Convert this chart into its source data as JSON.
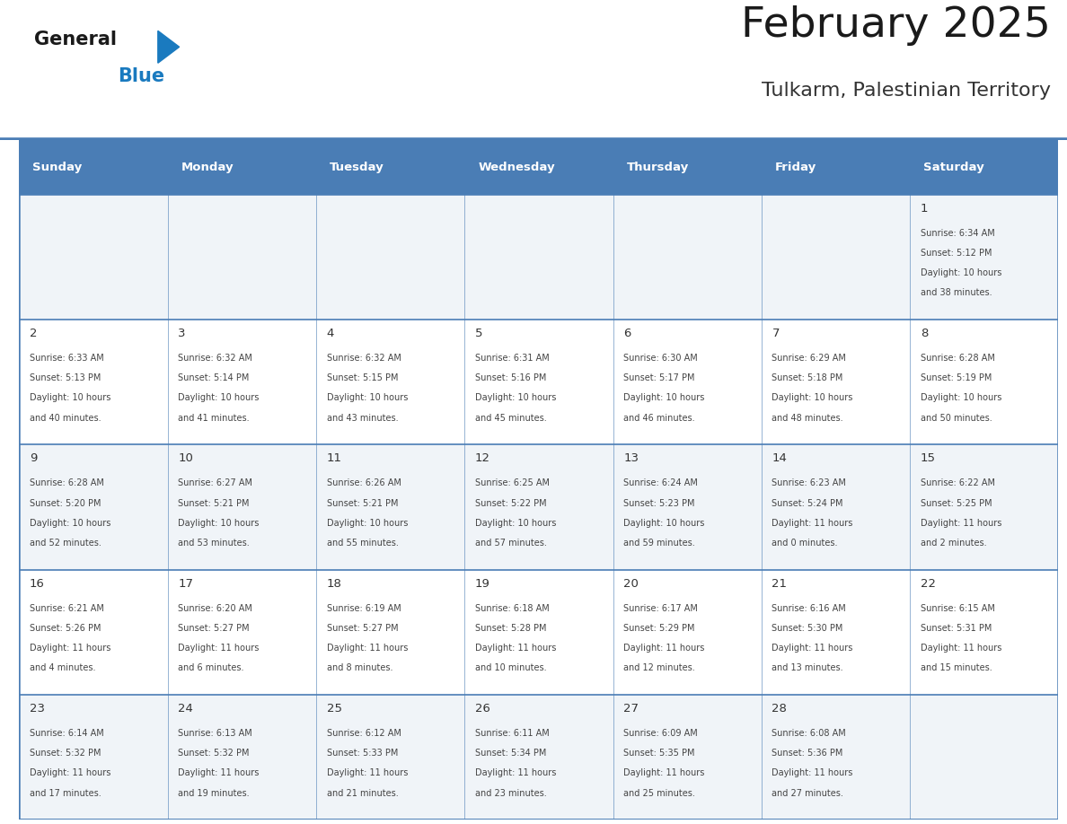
{
  "title": "February 2025",
  "subtitle": "Tulkarm, Palestinian Territory",
  "header_bg": "#4a7db5",
  "header_text": "#ffffff",
  "day_names": [
    "Sunday",
    "Monday",
    "Tuesday",
    "Wednesday",
    "Thursday",
    "Friday",
    "Saturday"
  ],
  "row_bg_odd": "#f0f4f8",
  "row_bg_even": "#ffffff",
  "cell_border_color": "#4a7db5",
  "row_border_color": "#4a7db5",
  "day_num_color": "#333333",
  "info_color": "#444444",
  "title_color": "#1a1a1a",
  "subtitle_color": "#333333",
  "logo_general_color": "#1a1a1a",
  "logo_blue_color": "#1a7abf",
  "calendar": [
    [
      null,
      null,
      null,
      null,
      null,
      null,
      {
        "day": "1",
        "sunrise": "6:34 AM",
        "sunset": "5:12 PM",
        "daylight": "10 hours and 38 minutes."
      }
    ],
    [
      {
        "day": "2",
        "sunrise": "6:33 AM",
        "sunset": "5:13 PM",
        "daylight": "10 hours and 40 minutes."
      },
      {
        "day": "3",
        "sunrise": "6:32 AM",
        "sunset": "5:14 PM",
        "daylight": "10 hours and 41 minutes."
      },
      {
        "day": "4",
        "sunrise": "6:32 AM",
        "sunset": "5:15 PM",
        "daylight": "10 hours and 43 minutes."
      },
      {
        "day": "5",
        "sunrise": "6:31 AM",
        "sunset": "5:16 PM",
        "daylight": "10 hours and 45 minutes."
      },
      {
        "day": "6",
        "sunrise": "6:30 AM",
        "sunset": "5:17 PM",
        "daylight": "10 hours and 46 minutes."
      },
      {
        "day": "7",
        "sunrise": "6:29 AM",
        "sunset": "5:18 PM",
        "daylight": "10 hours and 48 minutes."
      },
      {
        "day": "8",
        "sunrise": "6:28 AM",
        "sunset": "5:19 PM",
        "daylight": "10 hours and 50 minutes."
      }
    ],
    [
      {
        "day": "9",
        "sunrise": "6:28 AM",
        "sunset": "5:20 PM",
        "daylight": "10 hours and 52 minutes."
      },
      {
        "day": "10",
        "sunrise": "6:27 AM",
        "sunset": "5:21 PM",
        "daylight": "10 hours and 53 minutes."
      },
      {
        "day": "11",
        "sunrise": "6:26 AM",
        "sunset": "5:21 PM",
        "daylight": "10 hours and 55 minutes."
      },
      {
        "day": "12",
        "sunrise": "6:25 AM",
        "sunset": "5:22 PM",
        "daylight": "10 hours and 57 minutes."
      },
      {
        "day": "13",
        "sunrise": "6:24 AM",
        "sunset": "5:23 PM",
        "daylight": "10 hours and 59 minutes."
      },
      {
        "day": "14",
        "sunrise": "6:23 AM",
        "sunset": "5:24 PM",
        "daylight": "11 hours and 0 minutes."
      },
      {
        "day": "15",
        "sunrise": "6:22 AM",
        "sunset": "5:25 PM",
        "daylight": "11 hours and 2 minutes."
      }
    ],
    [
      {
        "day": "16",
        "sunrise": "6:21 AM",
        "sunset": "5:26 PM",
        "daylight": "11 hours and 4 minutes."
      },
      {
        "day": "17",
        "sunrise": "6:20 AM",
        "sunset": "5:27 PM",
        "daylight": "11 hours and 6 minutes."
      },
      {
        "day": "18",
        "sunrise": "6:19 AM",
        "sunset": "5:27 PM",
        "daylight": "11 hours and 8 minutes."
      },
      {
        "day": "19",
        "sunrise": "6:18 AM",
        "sunset": "5:28 PM",
        "daylight": "11 hours and 10 minutes."
      },
      {
        "day": "20",
        "sunrise": "6:17 AM",
        "sunset": "5:29 PM",
        "daylight": "11 hours and 12 minutes."
      },
      {
        "day": "21",
        "sunrise": "6:16 AM",
        "sunset": "5:30 PM",
        "daylight": "11 hours and 13 minutes."
      },
      {
        "day": "22",
        "sunrise": "6:15 AM",
        "sunset": "5:31 PM",
        "daylight": "11 hours and 15 minutes."
      }
    ],
    [
      {
        "day": "23",
        "sunrise": "6:14 AM",
        "sunset": "5:32 PM",
        "daylight": "11 hours and 17 minutes."
      },
      {
        "day": "24",
        "sunrise": "6:13 AM",
        "sunset": "5:32 PM",
        "daylight": "11 hours and 19 minutes."
      },
      {
        "day": "25",
        "sunrise": "6:12 AM",
        "sunset": "5:33 PM",
        "daylight": "11 hours and 21 minutes."
      },
      {
        "day": "26",
        "sunrise": "6:11 AM",
        "sunset": "5:34 PM",
        "daylight": "11 hours and 23 minutes."
      },
      {
        "day": "27",
        "sunrise": "6:09 AM",
        "sunset": "5:35 PM",
        "daylight": "11 hours and 25 minutes."
      },
      {
        "day": "28",
        "sunrise": "6:08 AM",
        "sunset": "5:36 PM",
        "daylight": "11 hours and 27 minutes."
      },
      null
    ]
  ]
}
